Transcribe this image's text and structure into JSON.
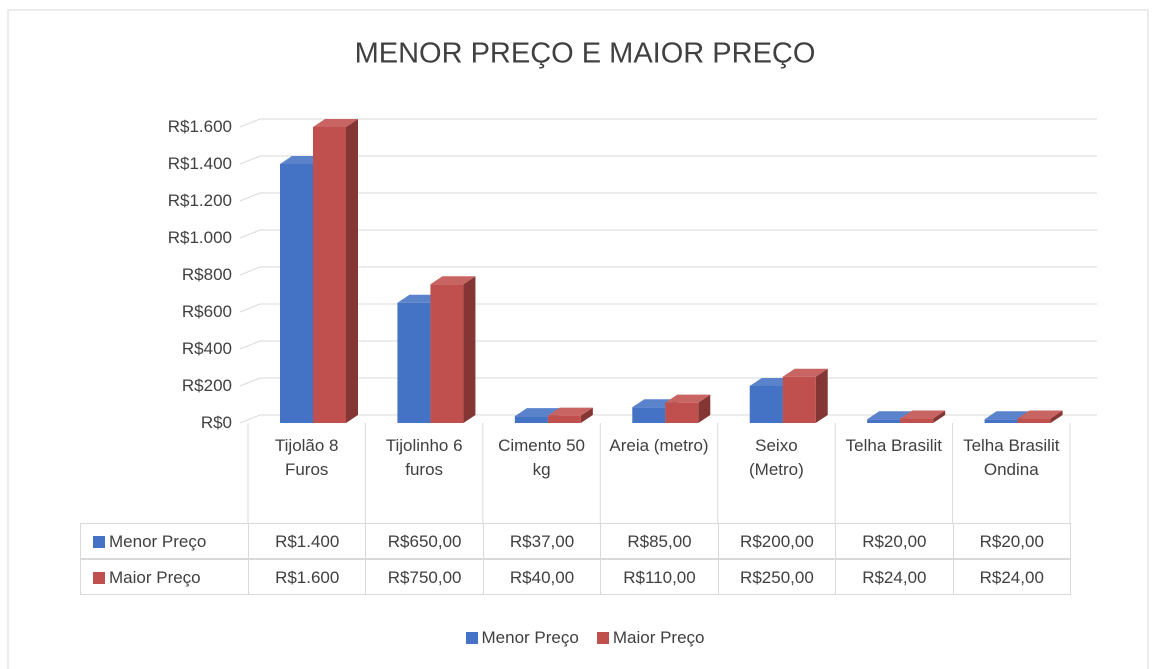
{
  "chart_data": {
    "type": "bar3d",
    "title": "MENOR PREÇO E MAIOR PREÇO",
    "categories": [
      "Tijolão 8 Furos",
      "Tijolinho 6 furos",
      "Cimento 50 kg",
      "Areia (metro)",
      "Seixo (Metro)",
      "Telha Brasilit",
      "Telha Brasilit Ondina"
    ],
    "series": [
      {
        "name": "Menor Preço",
        "color": "#4472c4",
        "values": [
          1400,
          650,
          37,
          85,
          200,
          20,
          20
        ],
        "value_labels": [
          "R$1.400",
          "R$650,00",
          "R$37,00",
          "R$85,00",
          "R$200,00",
          "R$20,00",
          "R$20,00"
        ]
      },
      {
        "name": "Maior Preço",
        "color": "#c0504d",
        "values": [
          1600,
          750,
          40,
          110,
          250,
          24,
          24
        ],
        "value_labels": [
          "R$1.600",
          "R$750,00",
          "R$40,00",
          "R$110,00",
          "R$250,00",
          "R$24,00",
          "R$24,00"
        ]
      }
    ],
    "ylim": [
      0,
      1600
    ],
    "yticks": [
      {
        "value": 0,
        "label": "R$0"
      },
      {
        "value": 200,
        "label": "R$200"
      },
      {
        "value": 400,
        "label": "R$400"
      },
      {
        "value": 600,
        "label": "R$600"
      },
      {
        "value": 800,
        "label": "R$800"
      },
      {
        "value": 1000,
        "label": "R$1.000"
      },
      {
        "value": 1200,
        "label": "R$1.200"
      },
      {
        "value": 1400,
        "label": "R$1.400"
      },
      {
        "value": 1600,
        "label": "R$1.600"
      }
    ],
    "grid": true,
    "data_table": true,
    "legend": "bottom"
  }
}
